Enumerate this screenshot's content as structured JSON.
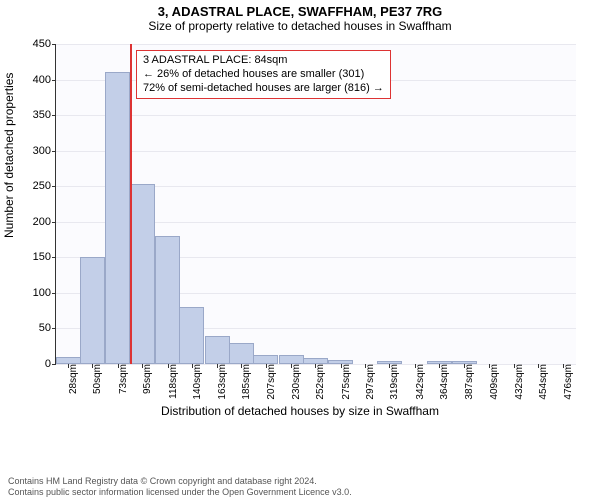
{
  "title": "3, ADASTRAL PLACE, SWAFFHAM, PE37 7RG",
  "subtitle": "Size of property relative to detached houses in Swaffham",
  "ylabel": "Number of detached properties",
  "xlabel": "Distribution of detached houses by size in Swaffham",
  "footer_line1": "Contains HM Land Registry data © Crown copyright and database right 2024.",
  "footer_line2": "Contains public sector information licensed under the Open Government Licence v3.0.",
  "chart": {
    "type": "histogram",
    "background_color": "#fbfbfe",
    "grid_color": "#e8e8ef",
    "bar_fill": "#c3cfe8",
    "bar_border": "#9aa8c8",
    "ylim": [
      0,
      450
    ],
    "ytick_step": 50,
    "yticks": [
      0,
      50,
      100,
      150,
      200,
      250,
      300,
      350,
      400,
      450
    ],
    "x_min": 17,
    "x_max": 488,
    "xtick_labels": [
      "28sqm",
      "50sqm",
      "73sqm",
      "95sqm",
      "118sqm",
      "140sqm",
      "163sqm",
      "185sqm",
      "207sqm",
      "230sqm",
      "252sqm",
      "275sqm",
      "297sqm",
      "319sqm",
      "342sqm",
      "364sqm",
      "387sqm",
      "409sqm",
      "432sqm",
      "454sqm",
      "476sqm"
    ],
    "xtick_values": [
      28,
      50,
      73,
      95,
      118,
      140,
      163,
      185,
      207,
      230,
      252,
      275,
      297,
      319,
      342,
      364,
      387,
      409,
      432,
      454,
      476
    ],
    "bin_width_sqm": 22.5,
    "bars": [
      {
        "center": 28,
        "value": 10
      },
      {
        "center": 50,
        "value": 150
      },
      {
        "center": 73,
        "value": 410
      },
      {
        "center": 95,
        "value": 253
      },
      {
        "center": 118,
        "value": 180
      },
      {
        "center": 140,
        "value": 80
      },
      {
        "center": 163,
        "value": 40
      },
      {
        "center": 185,
        "value": 30
      },
      {
        "center": 207,
        "value": 13
      },
      {
        "center": 230,
        "value": 13
      },
      {
        "center": 252,
        "value": 8
      },
      {
        "center": 275,
        "value": 5
      },
      {
        "center": 297,
        "value": 0
      },
      {
        "center": 319,
        "value": 4
      },
      {
        "center": 342,
        "value": 0
      },
      {
        "center": 364,
        "value": 4
      },
      {
        "center": 387,
        "value": 4
      },
      {
        "center": 409,
        "value": 0
      },
      {
        "center": 432,
        "value": 0
      },
      {
        "center": 454,
        "value": 0
      },
      {
        "center": 476,
        "value": 0
      }
    ],
    "marker": {
      "x_value": 84,
      "color": "#d33",
      "callout_lines": [
        "3 ADASTRAL PLACE: 84sqm",
        "← 26% of detached houses are smaller (301)",
        "72% of semi-detached houses are larger (816) →"
      ]
    }
  }
}
